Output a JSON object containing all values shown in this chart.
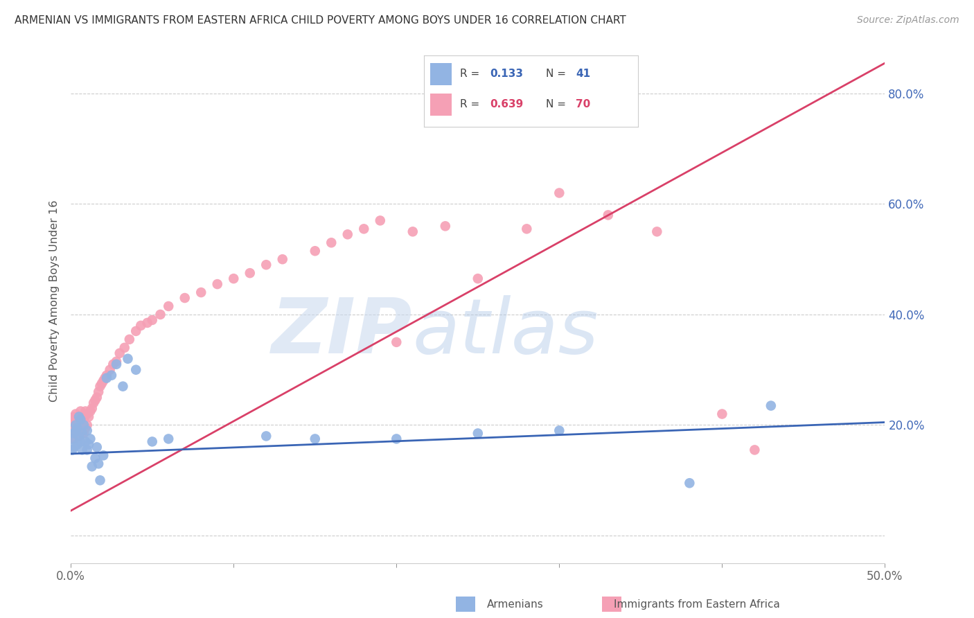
{
  "title": "ARMENIAN VS IMMIGRANTS FROM EASTERN AFRICA CHILD POVERTY AMONG BOYS UNDER 16 CORRELATION CHART",
  "source": "Source: ZipAtlas.com",
  "ylabel": "Child Poverty Among Boys Under 16",
  "xlim": [
    0.0,
    0.5
  ],
  "ylim": [
    -0.05,
    0.9
  ],
  "color_armenian": "#92b4e3",
  "color_eastern_africa": "#f5a0b5",
  "line_color_armenian": "#3a65b5",
  "line_color_eastern_africa": "#d94068",
  "legend_label1": "Armenians",
  "legend_label2": "Immigrants from Eastern Africa",
  "R1": "0.133",
  "N1": "41",
  "R2": "0.639",
  "N2": "70",
  "armenian_x": [
    0.001,
    0.001,
    0.002,
    0.002,
    0.003,
    0.003,
    0.004,
    0.004,
    0.005,
    0.005,
    0.006,
    0.006,
    0.007,
    0.007,
    0.008,
    0.009,
    0.01,
    0.01,
    0.011,
    0.012,
    0.013,
    0.015,
    0.016,
    0.017,
    0.018,
    0.02,
    0.022,
    0.025,
    0.028,
    0.032,
    0.035,
    0.04,
    0.05,
    0.06,
    0.12,
    0.15,
    0.2,
    0.25,
    0.3,
    0.38,
    0.43
  ],
  "armenian_y": [
    0.155,
    0.175,
    0.16,
    0.185,
    0.19,
    0.2,
    0.165,
    0.195,
    0.18,
    0.215,
    0.17,
    0.21,
    0.155,
    0.185,
    0.2,
    0.17,
    0.155,
    0.19,
    0.165,
    0.175,
    0.125,
    0.14,
    0.16,
    0.13,
    0.1,
    0.145,
    0.285,
    0.29,
    0.31,
    0.27,
    0.32,
    0.3,
    0.17,
    0.175,
    0.18,
    0.175,
    0.175,
    0.185,
    0.19,
    0.095,
    0.235
  ],
  "eastern_africa_x": [
    0.001,
    0.001,
    0.001,
    0.002,
    0.002,
    0.002,
    0.003,
    0.003,
    0.003,
    0.004,
    0.004,
    0.005,
    0.005,
    0.005,
    0.006,
    0.006,
    0.007,
    0.007,
    0.008,
    0.008,
    0.009,
    0.009,
    0.01,
    0.01,
    0.011,
    0.012,
    0.013,
    0.014,
    0.015,
    0.016,
    0.017,
    0.018,
    0.019,
    0.02,
    0.021,
    0.022,
    0.024,
    0.026,
    0.028,
    0.03,
    0.033,
    0.036,
    0.04,
    0.043,
    0.047,
    0.05,
    0.055,
    0.06,
    0.07,
    0.08,
    0.09,
    0.1,
    0.11,
    0.12,
    0.13,
    0.15,
    0.16,
    0.17,
    0.18,
    0.19,
    0.2,
    0.21,
    0.23,
    0.25,
    0.28,
    0.3,
    0.33,
    0.36,
    0.4,
    0.42
  ],
  "eastern_africa_y": [
    0.185,
    0.195,
    0.21,
    0.175,
    0.2,
    0.215,
    0.19,
    0.205,
    0.22,
    0.195,
    0.21,
    0.18,
    0.2,
    0.215,
    0.19,
    0.225,
    0.2,
    0.215,
    0.185,
    0.21,
    0.195,
    0.225,
    0.2,
    0.22,
    0.215,
    0.225,
    0.23,
    0.24,
    0.245,
    0.25,
    0.26,
    0.27,
    0.275,
    0.28,
    0.285,
    0.29,
    0.3,
    0.31,
    0.315,
    0.33,
    0.34,
    0.355,
    0.37,
    0.38,
    0.385,
    0.39,
    0.4,
    0.415,
    0.43,
    0.44,
    0.455,
    0.465,
    0.475,
    0.49,
    0.5,
    0.515,
    0.53,
    0.545,
    0.555,
    0.57,
    0.35,
    0.55,
    0.56,
    0.465,
    0.555,
    0.62,
    0.58,
    0.55,
    0.22,
    0.155
  ]
}
